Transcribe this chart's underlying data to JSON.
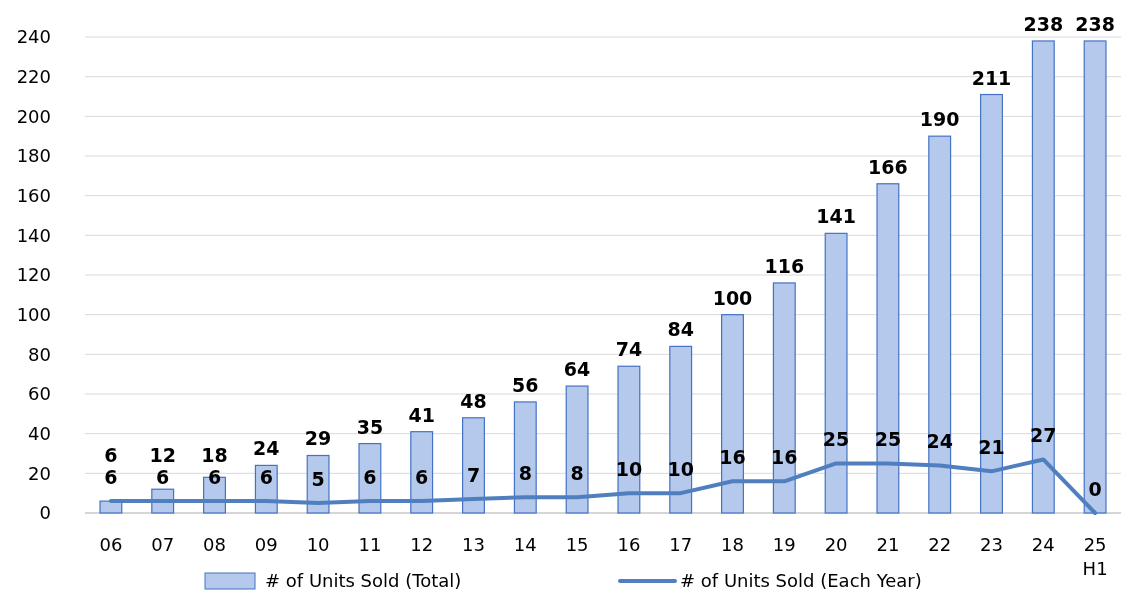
{
  "chart_data": {
    "type": "bar",
    "categories": [
      "06",
      "07",
      "08",
      "09",
      "10",
      "11",
      "12",
      "13",
      "14",
      "15",
      "16",
      "17",
      "18",
      "19",
      "20",
      "21",
      "22",
      "23",
      "24",
      "25\nH1"
    ],
    "series": [
      {
        "name": "# of Units Sold (Total)",
        "color": "#b4c9eb",
        "values": [
          6,
          12,
          18,
          24,
          29,
          35,
          41,
          48,
          56,
          64,
          74,
          84,
          100,
          116,
          141,
          166,
          190,
          211,
          238,
          238
        ]
      },
      {
        "name": "# of Units Sold (Each Year)",
        "type": "line",
        "color": "#4f7fbf",
        "values": [
          6,
          6,
          6,
          6,
          5,
          6,
          6,
          7,
          8,
          8,
          10,
          10,
          16,
          16,
          25,
          25,
          24,
          21,
          27,
          0
        ]
      }
    ],
    "ylim": [
      0,
      240
    ],
    "yticks": [
      0,
      20,
      40,
      60,
      80,
      100,
      120,
      140,
      160,
      180,
      200,
      220,
      240
    ],
    "grid": "y",
    "legend": "bottom",
    "data_labels": true,
    "marker": "none"
  }
}
